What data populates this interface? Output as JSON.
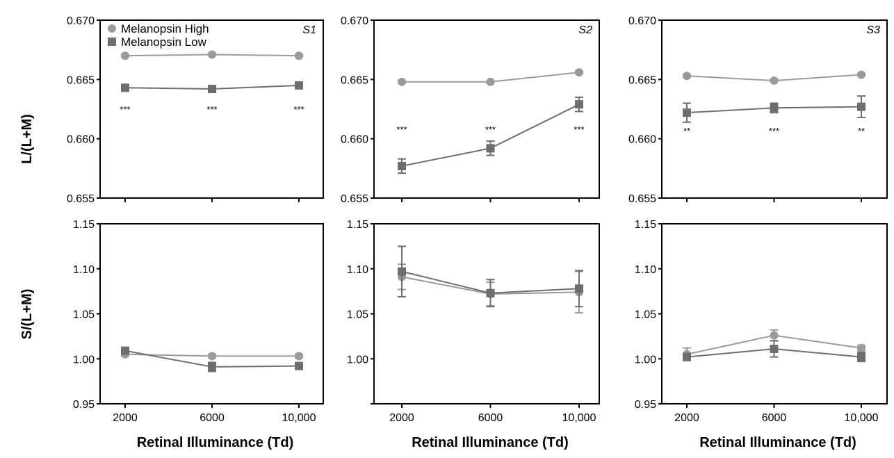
{
  "figure": {
    "xlabel": "Retinal Illuminance (Td)",
    "ylabel_top": "L/(L+M)",
    "ylabel_bottom": "S/(L+M)"
  },
  "legend": [
    {
      "name": "Melanopsin High",
      "marker": "circle"
    },
    {
      "name": "Melanopsin Low",
      "marker": "square"
    }
  ],
  "colors": {
    "high": "#9a9a9a",
    "low": "#6e6e6e",
    "axis": "#000000"
  },
  "chart_data": [
    {
      "type": "line",
      "panel": "S1",
      "x": [
        2000,
        6000,
        10000
      ],
      "x_tick_labels": [
        "2000",
        "6000",
        "10,000"
      ],
      "ylim": [
        0.655,
        0.67
      ],
      "y_ticks": [
        "0.655",
        "0.660",
        "0.665",
        "0.670"
      ],
      "ylabel": "L/(L+M)",
      "series": [
        {
          "name": "Melanopsin High",
          "values": [
            0.667,
            0.6671,
            0.667
          ],
          "err": [
            0.0001,
            0.0001,
            0.0001
          ]
        },
        {
          "name": "Melanopsin Low",
          "values": [
            0.6643,
            0.6642,
            0.6645
          ],
          "err": [
            0.0002,
            0.0002,
            0.0002
          ]
        }
      ],
      "significance": [
        "***",
        "***",
        "***"
      ],
      "sig_y": 0.6622
    },
    {
      "type": "line",
      "panel": "S2",
      "x": [
        2000,
        6000,
        10000
      ],
      "x_tick_labels": [
        "2000",
        "6000",
        "10,000"
      ],
      "ylim": [
        0.655,
        0.67
      ],
      "y_ticks": [
        "0.655",
        "0.660",
        "0.665",
        "0.670"
      ],
      "ylabel": "",
      "series": [
        {
          "name": "Melanopsin High",
          "values": [
            0.6648,
            0.6648,
            0.6656
          ],
          "err": [
            0.0001,
            0.0001,
            0.0001
          ]
        },
        {
          "name": "Melanopsin Low",
          "values": [
            0.6577,
            0.6592,
            0.6629
          ],
          "err": [
            0.0006,
            0.0006,
            0.0006
          ]
        }
      ],
      "significance": [
        "***",
        "***",
        "***"
      ],
      "sig_y": 0.6605
    },
    {
      "type": "line",
      "panel": "S3",
      "x": [
        2000,
        6000,
        10000
      ],
      "x_tick_labels": [
        "2000",
        "6000",
        "10,000"
      ],
      "ylim": [
        0.655,
        0.67
      ],
      "y_ticks": [
        "0.655",
        "0.660",
        "0.665",
        "0.670"
      ],
      "ylabel": "",
      "series": [
        {
          "name": "Melanopsin High",
          "values": [
            0.6653,
            0.6649,
            0.6654
          ],
          "err": [
            0.0001,
            0.0001,
            0.0001
          ]
        },
        {
          "name": "Melanopsin Low",
          "values": [
            0.6622,
            0.6626,
            0.6627
          ],
          "err": [
            0.0008,
            0.0004,
            0.0009
          ]
        }
      ],
      "significance": [
        "**",
        "***",
        "**"
      ],
      "sig_y": 0.6604
    },
    {
      "type": "line",
      "panel": "",
      "x": [
        2000,
        6000,
        10000
      ],
      "x_tick_labels": [
        "2000",
        "6000",
        "10,000"
      ],
      "ylim": [
        0.95,
        1.15
      ],
      "y_ticks": [
        "0.95",
        "1.00",
        "1.05",
        "1.10",
        "1.15"
      ],
      "ylabel": "S/(L+M)",
      "xlabel": "Retinal Illuminance (Td)",
      "series": [
        {
          "name": "Melanopsin High",
          "values": [
            1.005,
            1.003,
            1.003
          ],
          "err": [
            0.002,
            0.002,
            0.002
          ]
        },
        {
          "name": "Melanopsin Low",
          "values": [
            1.009,
            0.991,
            0.992
          ],
          "err": [
            0.003,
            0.005,
            0.003
          ]
        }
      ]
    },
    {
      "type": "line",
      "panel": "",
      "x": [
        2000,
        6000,
        10000
      ],
      "x_tick_labels": [
        "2000",
        "6000",
        "10,000"
      ],
      "ylim": [
        0.95,
        1.15
      ],
      "y_ticks": [
        "",
        "1.00",
        "1.05",
        "1.10",
        "1.15"
      ],
      "ylabel": "",
      "xlabel": "Retinal Illuminance (Td)",
      "series": [
        {
          "name": "Melanopsin High",
          "values": [
            1.091,
            1.072,
            1.074
          ],
          "err": [
            0.014,
            0.013,
            0.023
          ]
        },
        {
          "name": "Melanopsin Low",
          "values": [
            1.097,
            1.073,
            1.078
          ],
          "err": [
            0.028,
            0.015,
            0.02
          ]
        }
      ]
    },
    {
      "type": "line",
      "panel": "",
      "x": [
        2000,
        6000,
        10000
      ],
      "x_tick_labels": [
        "2000",
        "6000",
        "10,000"
      ],
      "ylim": [
        0.95,
        1.15
      ],
      "y_ticks": [
        "0.95",
        "1.00",
        "1.05",
        "1.10",
        "1.15"
      ],
      "ylabel": "",
      "xlabel": "Retinal Illuminance (Td)",
      "series": [
        {
          "name": "Melanopsin High",
          "values": [
            1.005,
            1.026,
            1.012
          ],
          "err": [
            0.007,
            0.006,
            0.003
          ]
        },
        {
          "name": "Melanopsin Low",
          "values": [
            1.002,
            1.011,
            1.002
          ],
          "err": [
            0.004,
            0.009,
            0.005
          ]
        }
      ]
    }
  ]
}
